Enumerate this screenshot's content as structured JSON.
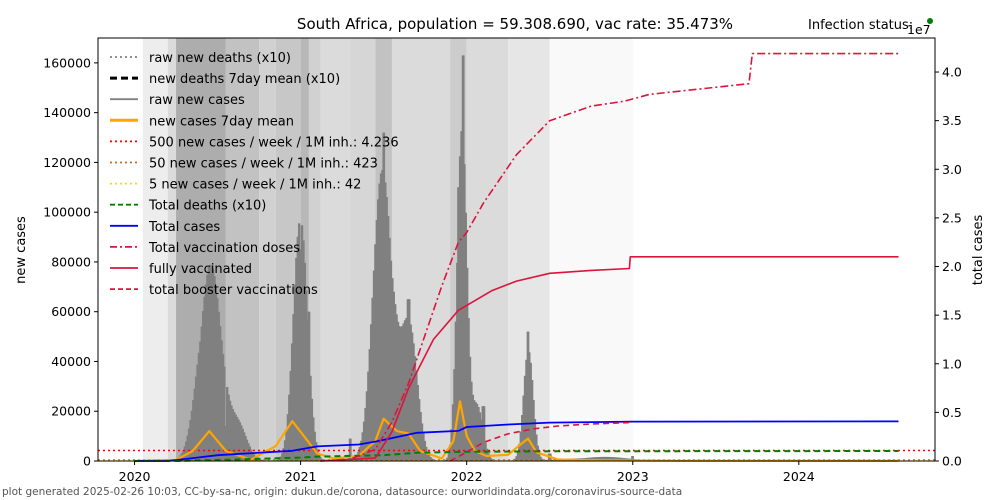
{
  "chart_data": {
    "type": "bar",
    "title": "South Africa, population = 59.308.690, vac rate: 35.473%",
    "status_label": "Infection status:",
    "status_color": "#008000",
    "xlabel": "",
    "ylabel": "new cases",
    "y2label": "total cases",
    "y2_multiplier_label": "1e7",
    "xlim": [
      2019.78,
      2024.82
    ],
    "ylim": [
      0,
      170000
    ],
    "y2lim": [
      0,
      43500000
    ],
    "x_ticks": [
      2020,
      2021,
      2022,
      2023,
      2024
    ],
    "x_tick_labels": [
      "2020",
      "2021",
      "2022",
      "2023",
      "2024"
    ],
    "y_ticks": [
      0,
      20000,
      40000,
      60000,
      80000,
      100000,
      120000,
      140000,
      160000
    ],
    "y_tick_labels": [
      "0",
      "20000",
      "40000",
      "60000",
      "80000",
      "100000",
      "120000",
      "140000",
      "160000"
    ],
    "y2_ticks": [
      0,
      5000000,
      10000000,
      15000000,
      20000000,
      25000000,
      30000000,
      35000000,
      40000000
    ],
    "y2_tick_labels": [
      "0.0",
      "0.5",
      "1.0",
      "1.5",
      "2.0",
      "2.5",
      "3.0",
      "3.5",
      "4.0"
    ],
    "grid": false,
    "legend_placement": "top-left",
    "legend": [
      {
        "label": "raw new deaths (x10)",
        "color": "#808080",
        "style": "dotted"
      },
      {
        "label": "new deaths 7day mean (x10)",
        "color": "#000000",
        "style": "dashed-bold"
      },
      {
        "label": "raw new cases",
        "color": "#808080",
        "style": "solid"
      },
      {
        "label": "new cases 7day mean",
        "color": "#ffa500",
        "style": "solid-bold"
      },
      {
        "label": "500 new cases / week / 1M inh.: 4.236",
        "color": "#ff0000",
        "style": "dotted"
      },
      {
        "label": "50 new cases / week / 1M inh.: 423",
        "color": "#d2691e",
        "style": "dotted"
      },
      {
        "label": "5 new cases / week / 1M inh.: 42",
        "color": "#ffd700",
        "style": "dotted"
      },
      {
        "label": "Total deaths (x10)",
        "color": "#008000",
        "style": "dashed"
      },
      {
        "label": "Total cases",
        "color": "#0000ff",
        "style": "solid"
      },
      {
        "label": "Total vaccination doses",
        "color": "#dc143c",
        "style": "dashdot"
      },
      {
        "label": "fully vaccinated",
        "color": "#dc143c",
        "style": "solid"
      },
      {
        "label": "total booster vaccinations",
        "color": "#dc143c",
        "style": "dashed"
      }
    ],
    "thresholds": [
      {
        "name": "500 new cases / week / 1M inh.",
        "value": 4236,
        "color": "#ff0000"
      },
      {
        "name": "50 new cases / week / 1M inh.",
        "value": 423,
        "color": "#d2691e"
      },
      {
        "name": "5 new cases / week / 1M inh.",
        "value": 42,
        "color": "#ffd700"
      }
    ],
    "background_bands": [
      {
        "x0": 2020.05,
        "x1": 2020.2,
        "shade": 0.93
      },
      {
        "x0": 2020.2,
        "x1": 2020.25,
        "shade": 0.86
      },
      {
        "x0": 2020.25,
        "x1": 2020.55,
        "shade": 0.68
      },
      {
        "x0": 2020.55,
        "x1": 2020.75,
        "shade": 0.76
      },
      {
        "x0": 2020.75,
        "x1": 2020.85,
        "shade": 0.82
      },
      {
        "x0": 2020.85,
        "x1": 2021.0,
        "shade": 0.78
      },
      {
        "x0": 2021.0,
        "x1": 2021.05,
        "shade": 0.72
      },
      {
        "x0": 2021.05,
        "x1": 2021.12,
        "shade": 0.82
      },
      {
        "x0": 2021.12,
        "x1": 2021.3,
        "shade": 0.86
      },
      {
        "x0": 2021.3,
        "x1": 2021.45,
        "shade": 0.84
      },
      {
        "x0": 2021.45,
        "x1": 2021.55,
        "shade": 0.76
      },
      {
        "x0": 2021.55,
        "x1": 2021.9,
        "shade": 0.86
      },
      {
        "x0": 2021.9,
        "x1": 2022.0,
        "shade": 0.8
      },
      {
        "x0": 2022.0,
        "x1": 2022.25,
        "shade": 0.86
      },
      {
        "x0": 2022.25,
        "x1": 2022.5,
        "shade": 0.9
      },
      {
        "x0": 2022.5,
        "x1": 2023.0,
        "shade": 0.975
      }
    ],
    "raw_new_cases_weekly_peaks": [
      {
        "x": 2020.45,
        "y": 78000
      },
      {
        "x": 2020.55,
        "y": 14000
      },
      {
        "x": 2021.0,
        "y": 85000
      },
      {
        "x": 2021.05,
        "y": 60000
      },
      {
        "x": 2021.3,
        "y": 9000
      },
      {
        "x": 2021.5,
        "y": 132000
      },
      {
        "x": 2021.65,
        "y": 65000
      },
      {
        "x": 2021.95,
        "y": 110000
      },
      {
        "x": 2021.98,
        "y": 163000
      },
      {
        "x": 2022.1,
        "y": 22000
      },
      {
        "x": 2022.37,
        "y": 52000
      },
      {
        "x": 2022.5,
        "y": 3000
      },
      {
        "x": 2023.0,
        "y": 2000
      }
    ],
    "series": [
      {
        "name": "new cases 7day mean",
        "axis": "left",
        "x": [
          2020.0,
          2020.25,
          2020.35,
          2020.45,
          2020.55,
          2020.7,
          2020.85,
          2020.95,
          2021.02,
          2021.1,
          2021.2,
          2021.35,
          2021.45,
          2021.5,
          2021.58,
          2021.65,
          2021.72,
          2021.85,
          2021.92,
          2021.96,
          2022.0,
          2022.05,
          2022.12,
          2022.25,
          2022.33,
          2022.37,
          2022.42,
          2022.55,
          2022.8,
          2023.0,
          2023.3,
          2024.6
        ],
        "y": [
          0,
          500,
          4000,
          12000,
          4000,
          500,
          6000,
          16000,
          10000,
          3000,
          1000,
          2000,
          8000,
          17000,
          12000,
          11000,
          4000,
          1000,
          8000,
          24000,
          10000,
          4000,
          2000,
          2500,
          7000,
          9000,
          3500,
          600,
          300,
          200,
          100,
          50
        ]
      },
      {
        "name": "Total cases",
        "axis": "right",
        "x": [
          2020.0,
          2020.2,
          2020.35,
          2020.5,
          2020.65,
          2020.95,
          2021.1,
          2021.35,
          2021.45,
          2021.7,
          2021.95,
          2022.0,
          2022.25,
          2022.5,
          2023.0,
          2024.6
        ],
        "y": [
          0,
          5000,
          300000,
          600000,
          750000,
          1050000,
          1500000,
          1700000,
          2000000,
          2900000,
          3100000,
          3500000,
          3750000,
          3950000,
          4050000,
          4070000
        ]
      },
      {
        "name": "Total deaths (x10)",
        "axis": "right",
        "x": [
          2020.0,
          2020.3,
          2020.6,
          2021.0,
          2021.1,
          2021.5,
          2021.7,
          2022.0,
          2022.5,
          2024.6
        ],
        "y": [
          0,
          20000,
          150000,
          350000,
          450000,
          600000,
          850000,
          950000,
          1000000,
          1030000
        ]
      },
      {
        "name": "Total vaccination doses",
        "axis": "right",
        "x": [
          2021.12,
          2021.3,
          2021.45,
          2021.55,
          2021.65,
          2021.75,
          2021.85,
          2021.95,
          2022.0,
          2022.1,
          2022.2,
          2022.3,
          2022.5,
          2022.75,
          2022.95,
          2023.1,
          2023.7,
          2023.72,
          2024.6
        ],
        "y": [
          0,
          200000,
          1200000,
          4000000,
          8000000,
          13000000,
          18000000,
          22500000,
          23500000,
          26500000,
          29000000,
          31500000,
          35000000,
          36500000,
          37000000,
          37700000,
          38800000,
          41900000,
          41900000
        ]
      },
      {
        "name": "fully vaccinated",
        "axis": "right",
        "x": [
          2021.12,
          2021.45,
          2021.55,
          2021.65,
          2021.8,
          2021.95,
          2022.0,
          2022.15,
          2022.3,
          2022.5,
          2022.75,
          2022.98,
          2022.985,
          2024.6
        ],
        "y": [
          0,
          300000,
          3000000,
          7500000,
          12500000,
          15500000,
          16000000,
          17500000,
          18500000,
          19300000,
          19600000,
          19800000,
          21000000,
          21000000
        ]
      },
      {
        "name": "total booster vaccinations",
        "axis": "right",
        "x": [
          2021.9,
          2022.0,
          2022.1,
          2022.25,
          2022.4,
          2022.55,
          2022.75,
          2022.98
        ],
        "y": [
          0,
          900000,
          1900000,
          2800000,
          3300000,
          3600000,
          3800000,
          3950000
        ]
      }
    ]
  },
  "footer": {
    "text": "plot generated 2025-02-26 10:03, CC-by-sa-nc, origin: dukun.de/corona, datasource: ourworldindata.org/coronavirus-source-data"
  }
}
